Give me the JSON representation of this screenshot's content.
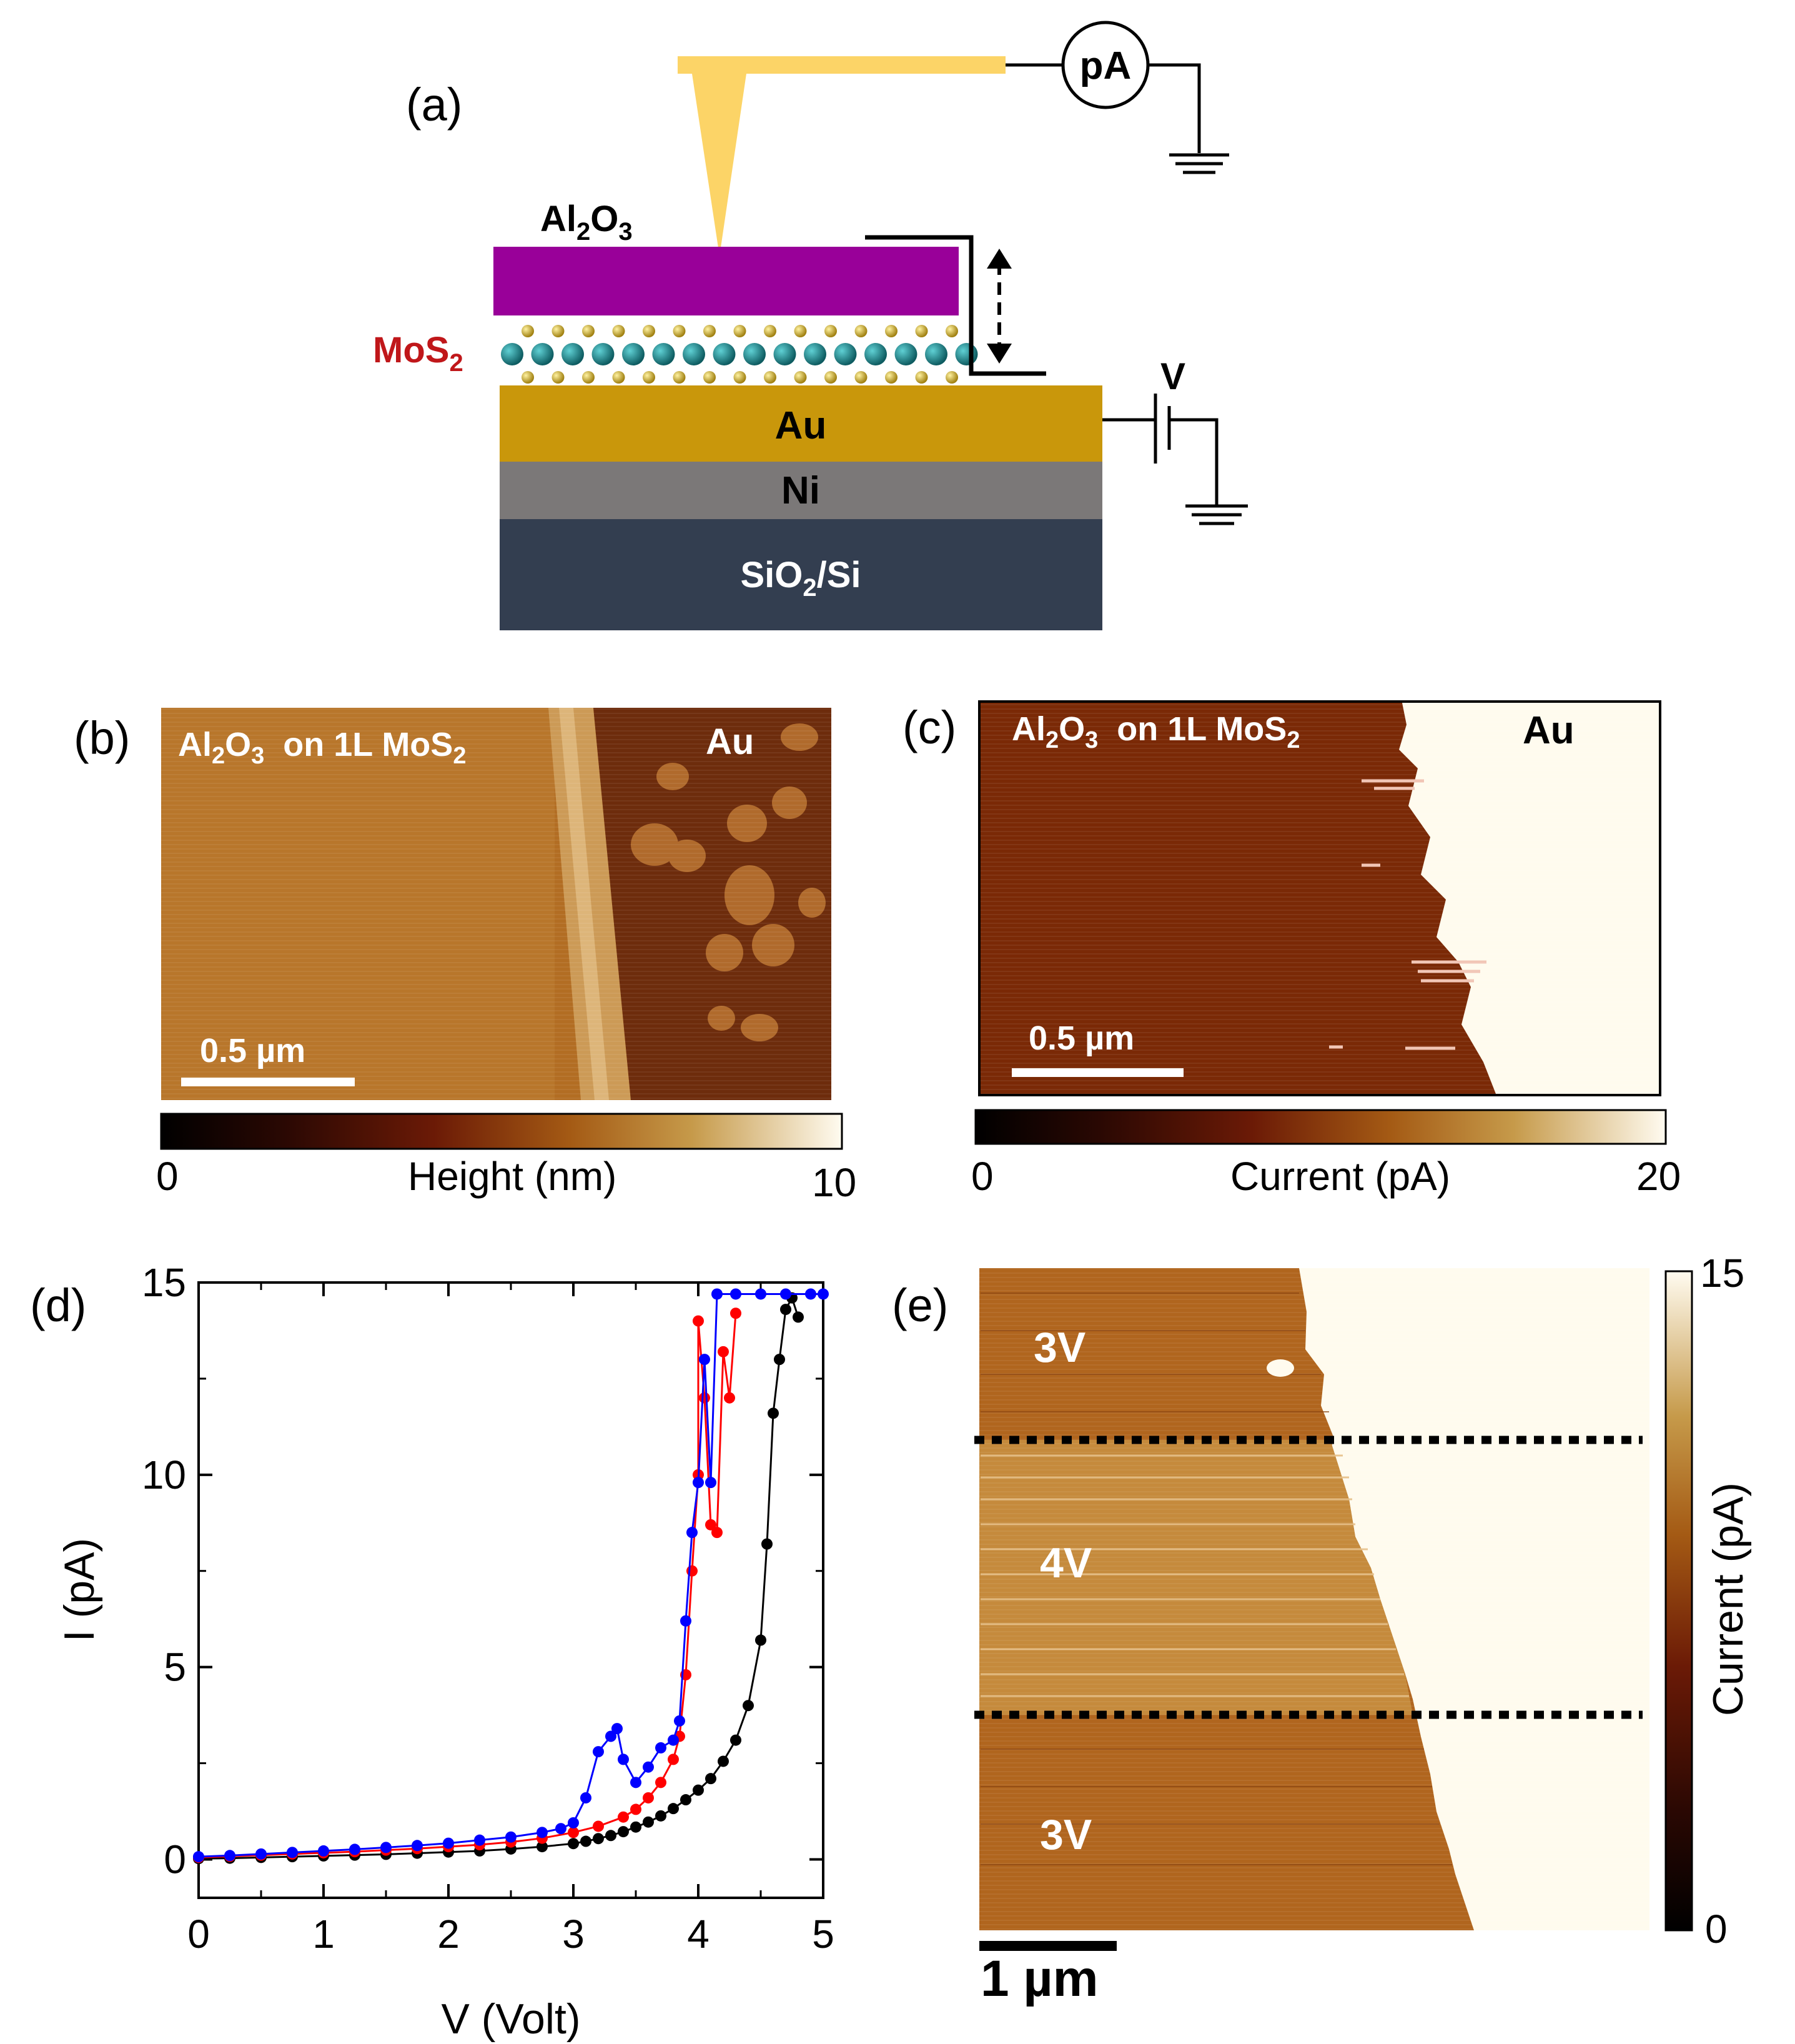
{
  "panel_a": {
    "label": "(a)",
    "ammeter": "pA",
    "layer_top_base": "Al",
    "layer_top_sub1": "2",
    "layer_top_mid": "O",
    "layer_top_sub2": "3",
    "mos2_base": "MoS",
    "mos2_sub": "2",
    "au": "Au",
    "ni": "Ni",
    "substrate_base": "SiO",
    "substrate_sub": "2",
    "substrate_rest": "/Si",
    "bias": "V",
    "colors": {
      "tip": "#FCD467",
      "al2o3": "#990099",
      "au": "#C9970B",
      "ni": "#7B7878",
      "substrate": "#333E50",
      "mo_atom": "#1A7E84",
      "s_atom": "#E3C11E",
      "mos2_text": "#C0171A"
    }
  },
  "panel_b": {
    "label": "(b)",
    "region_left_a": "Al",
    "region_left_b": "2",
    "region_left_c": "O",
    "region_left_d": "3",
    "region_left_e": "  on 1L MoS",
    "region_left_f": "2",
    "region_right": "Au",
    "scalebar": "0.5 µm",
    "colorbar_min": "0",
    "colorbar_max": "10",
    "colorbar_label": "Height (nm)"
  },
  "panel_c": {
    "label": "(c)",
    "region_left_a": "Al",
    "region_left_b": "2",
    "region_left_c": "O",
    "region_left_d": "3",
    "region_left_e": "  on 1L MoS",
    "region_left_f": "2",
    "region_right": "Au",
    "scalebar": "0.5 µm",
    "colorbar_min": "0",
    "colorbar_max": "20",
    "colorbar_label": "Current (pA)"
  },
  "panel_e": {
    "label": "(e)",
    "region_top": "3V",
    "region_mid": "4V",
    "region_bottom": "3V",
    "scalebar": "1 µm",
    "colorbar_min": "0",
    "colorbar_max": "15",
    "colorbar_label": "Current (pA)"
  },
  "chart_data": {
    "type": "scatter",
    "panel_label": "(d)",
    "title": "",
    "xlabel": "V (Volt)",
    "ylabel": "I (pA)",
    "xlim": [
      0,
      5
    ],
    "ylim": [
      -1,
      15
    ],
    "xticks": [
      "0",
      "1",
      "2",
      "3",
      "4",
      "5"
    ],
    "yticks": [
      "0",
      "5",
      "10",
      "15"
    ],
    "series": [
      {
        "name": "black",
        "color": "#000000",
        "points": [
          [
            0,
            0.02
          ],
          [
            0.25,
            0.03
          ],
          [
            0.5,
            0.05
          ],
          [
            0.75,
            0.07
          ],
          [
            1,
            0.09
          ],
          [
            1.25,
            0.11
          ],
          [
            1.5,
            0.13
          ],
          [
            1.75,
            0.16
          ],
          [
            2,
            0.19
          ],
          [
            2.25,
            0.22
          ],
          [
            2.5,
            0.27
          ],
          [
            2.75,
            0.33
          ],
          [
            3,
            0.41
          ],
          [
            3.1,
            0.47
          ],
          [
            3.2,
            0.54
          ],
          [
            3.3,
            0.62
          ],
          [
            3.4,
            0.72
          ],
          [
            3.5,
            0.84
          ],
          [
            3.6,
            0.97
          ],
          [
            3.7,
            1.13
          ],
          [
            3.8,
            1.32
          ],
          [
            3.9,
            1.55
          ],
          [
            4,
            1.8
          ],
          [
            4.1,
            2.1
          ],
          [
            4.2,
            2.55
          ],
          [
            4.3,
            3.1
          ],
          [
            4.4,
            4.0
          ],
          [
            4.5,
            5.7
          ],
          [
            4.55,
            8.2
          ],
          [
            4.6,
            11.6
          ],
          [
            4.65,
            13.0
          ],
          [
            4.7,
            14.3
          ],
          [
            4.75,
            14.6
          ],
          [
            4.8,
            14.1
          ]
        ]
      },
      {
        "name": "red",
        "color": "#FF0000",
        "points": [
          [
            0,
            0.05
          ],
          [
            0.25,
            0.08
          ],
          [
            0.5,
            0.11
          ],
          [
            0.75,
            0.14
          ],
          [
            1,
            0.17
          ],
          [
            1.25,
            0.2
          ],
          [
            1.5,
            0.24
          ],
          [
            1.75,
            0.28
          ],
          [
            2,
            0.33
          ],
          [
            2.25,
            0.38
          ],
          [
            2.5,
            0.45
          ],
          [
            2.75,
            0.55
          ],
          [
            3,
            0.7
          ],
          [
            3.2,
            0.86
          ],
          [
            3.4,
            1.1
          ],
          [
            3.5,
            1.3
          ],
          [
            3.6,
            1.6
          ],
          [
            3.7,
            2.0
          ],
          [
            3.8,
            2.6
          ],
          [
            3.85,
            3.2
          ],
          [
            3.9,
            4.8
          ],
          [
            3.95,
            7.5
          ],
          [
            4.0,
            10.0
          ],
          [
            4.0,
            14.0
          ],
          [
            4.05,
            12.0
          ],
          [
            4.1,
            8.7
          ],
          [
            4.15,
            8.5
          ],
          [
            4.2,
            13.2
          ],
          [
            4.25,
            12.0
          ],
          [
            4.3,
            14.2
          ]
        ]
      },
      {
        "name": "blue",
        "color": "#0000FF",
        "points": [
          [
            0,
            0.07
          ],
          [
            0.25,
            0.1
          ],
          [
            0.5,
            0.14
          ],
          [
            0.75,
            0.18
          ],
          [
            1,
            0.22
          ],
          [
            1.25,
            0.26
          ],
          [
            1.5,
            0.31
          ],
          [
            1.75,
            0.36
          ],
          [
            2,
            0.42
          ],
          [
            2.25,
            0.5
          ],
          [
            2.5,
            0.58
          ],
          [
            2.75,
            0.7
          ],
          [
            2.9,
            0.8
          ],
          [
            3.0,
            0.95
          ],
          [
            3.1,
            1.6
          ],
          [
            3.2,
            2.8
          ],
          [
            3.3,
            3.2
          ],
          [
            3.35,
            3.4
          ],
          [
            3.4,
            2.6
          ],
          [
            3.5,
            2.0
          ],
          [
            3.6,
            2.4
          ],
          [
            3.7,
            2.9
          ],
          [
            3.8,
            3.1
          ],
          [
            3.85,
            3.6
          ],
          [
            3.9,
            6.2
          ],
          [
            3.95,
            8.5
          ],
          [
            4.0,
            9.8
          ],
          [
            4.05,
            13.0
          ],
          [
            4.1,
            9.8
          ],
          [
            4.15,
            14.7
          ],
          [
            4.3,
            14.7
          ],
          [
            4.5,
            14.7
          ],
          [
            4.7,
            14.7
          ],
          [
            4.9,
            14.7
          ],
          [
            5.0,
            14.7
          ]
        ]
      }
    ]
  }
}
